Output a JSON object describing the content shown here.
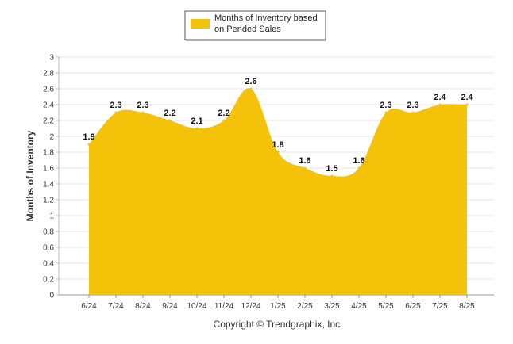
{
  "chart_data": {
    "type": "area",
    "x": [
      "6/24",
      "7/24",
      "8/24",
      "9/24",
      "10/24",
      "11/24",
      "12/24",
      "1/25",
      "2/25",
      "3/25",
      "4/25",
      "5/25",
      "6/25",
      "7/25",
      "8/25"
    ],
    "series": [
      {
        "name": "Months of Inventory based on Pended Sales",
        "legend_lines": [
          "Months of Inventory based",
          "on Pended Sales"
        ],
        "values": [
          1.9,
          2.3,
          2.3,
          2.2,
          2.1,
          2.2,
          2.6,
          1.8,
          1.6,
          1.5,
          1.6,
          2.3,
          2.3,
          2.4,
          2.4
        ],
        "color": "#F5C20A"
      }
    ],
    "ylabel": "Months of Inventory",
    "xlabel": "",
    "ylim": [
      0,
      3
    ],
    "yticks": [
      "0",
      "0.2",
      "0.4",
      "0.6",
      "0.8",
      "1",
      "1.2",
      "1.4",
      "1.6",
      "1.8",
      "2",
      "2.2",
      "2.4",
      "2.6",
      "2.8",
      "3"
    ],
    "ytick_values": [
      0,
      0.2,
      0.4,
      0.6,
      0.8,
      1,
      1.2,
      1.4,
      1.6,
      1.8,
      2,
      2.2,
      2.4,
      2.6,
      2.8,
      3
    ],
    "grid": true,
    "legend_position": "top-center",
    "data_labels": true
  },
  "footer": {
    "copyright": "Copyright © Trendgraphix, Inc."
  }
}
